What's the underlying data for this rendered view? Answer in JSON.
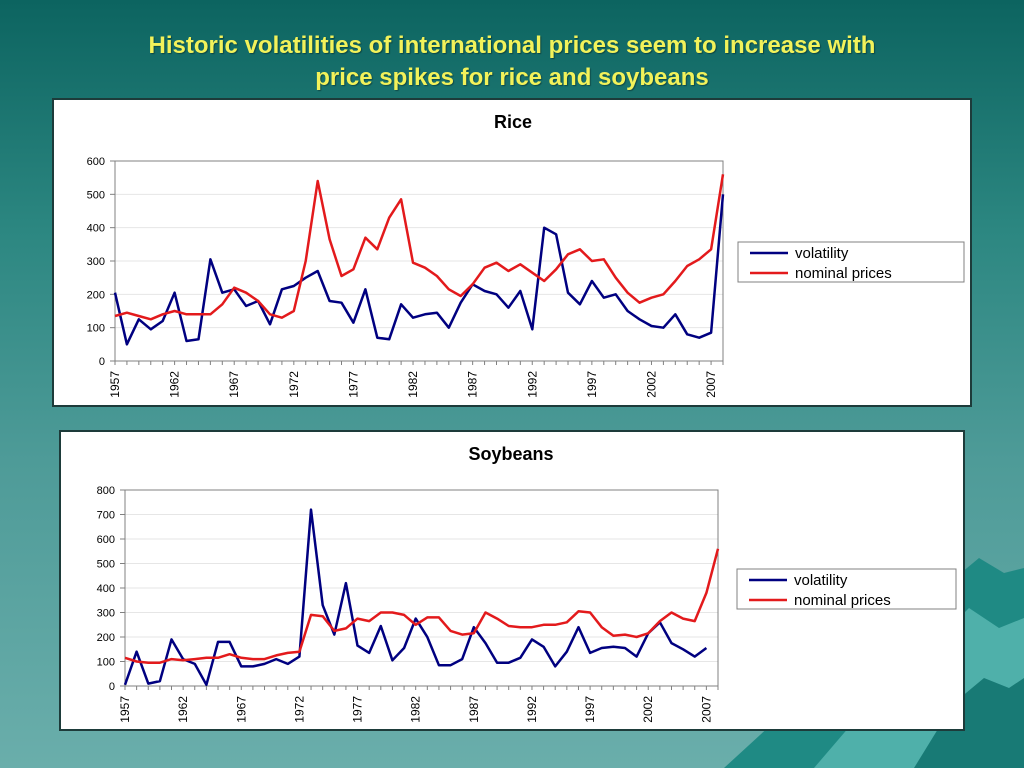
{
  "slide": {
    "title_line1": "Historic volatilities of international prices seem to increase with",
    "title_line2": "price spikes for rice and soybeans"
  },
  "colors": {
    "volatility": "#000080",
    "nominal_prices": "#e31a1c",
    "title": "#f2f25a"
  },
  "chart_data": [
    {
      "type": "line",
      "title": "Rice",
      "xlabel": "",
      "ylabel": "",
      "xlim": [
        1957,
        2008
      ],
      "ylim": [
        0,
        600
      ],
      "yticks": [
        0,
        100,
        200,
        300,
        400,
        500,
        600
      ],
      "xticks": [
        "1957",
        "1962",
        "1967",
        "1972",
        "1977",
        "1982",
        "1987",
        "1992",
        "1997",
        "2002",
        "2007"
      ],
      "grid": true,
      "legend": "right",
      "x": [
        1957,
        1958,
        1959,
        1960,
        1961,
        1962,
        1963,
        1964,
        1965,
        1966,
        1967,
        1968,
        1969,
        1970,
        1971,
        1972,
        1973,
        1974,
        1975,
        1976,
        1977,
        1978,
        1979,
        1980,
        1981,
        1982,
        1983,
        1984,
        1985,
        1986,
        1987,
        1988,
        1989,
        1990,
        1991,
        1992,
        1993,
        1994,
        1995,
        1996,
        1997,
        1998,
        1999,
        2000,
        2001,
        2002,
        2003,
        2004,
        2005,
        2006,
        2007,
        2008
      ],
      "series": [
        {
          "name": "volatility",
          "values": [
            205,
            50,
            125,
            95,
            120,
            205,
            60,
            65,
            305,
            205,
            215,
            165,
            180,
            110,
            215,
            225,
            250,
            270,
            180,
            175,
            115,
            215,
            70,
            65,
            170,
            130,
            140,
            145,
            100,
            175,
            230,
            210,
            200,
            160,
            210,
            95,
            400,
            380,
            205,
            170,
            240,
            190,
            200,
            150,
            125,
            105,
            100,
            140,
            80,
            70,
            85,
            500
          ]
        },
        {
          "name": "nominal prices",
          "values": [
            135,
            145,
            135,
            125,
            140,
            150,
            140,
            140,
            140,
            170,
            220,
            205,
            180,
            140,
            130,
            150,
            300,
            540,
            365,
            255,
            275,
            370,
            335,
            430,
            485,
            295,
            280,
            255,
            215,
            195,
            230,
            280,
            295,
            270,
            290,
            265,
            240,
            275,
            320,
            335,
            300,
            305,
            250,
            205,
            175,
            190,
            200,
            240,
            285,
            305,
            335,
            560
          ]
        }
      ]
    },
    {
      "type": "line",
      "title": "Soybeans",
      "xlabel": "",
      "ylabel": "",
      "xlim": [
        1957,
        2008
      ],
      "ylim": [
        0,
        800
      ],
      "yticks": [
        0,
        100,
        200,
        300,
        400,
        500,
        600,
        700,
        800
      ],
      "xticks": [
        "1957",
        "1962",
        "1967",
        "1972",
        "1977",
        "1982",
        "1987",
        "1992",
        "1997",
        "2002",
        "2007"
      ],
      "grid": true,
      "legend": "right",
      "x": [
        1957,
        1958,
        1959,
        1960,
        1961,
        1962,
        1963,
        1964,
        1965,
        1966,
        1967,
        1968,
        1969,
        1970,
        1971,
        1972,
        1973,
        1974,
        1975,
        1976,
        1977,
        1978,
        1979,
        1980,
        1981,
        1982,
        1983,
        1984,
        1985,
        1986,
        1987,
        1988,
        1989,
        1990,
        1991,
        1992,
        1993,
        1994,
        1995,
        1996,
        1997,
        1998,
        1999,
        2000,
        2001,
        2002,
        2003,
        2004,
        2005,
        2006,
        2007,
        2008
      ],
      "series": [
        {
          "name": "volatility",
          "values": [
            5,
            140,
            10,
            20,
            190,
            110,
            90,
            5,
            180,
            180,
            80,
            80,
            90,
            110,
            90,
            120,
            720,
            330,
            210,
            420,
            165,
            135,
            245,
            105,
            155,
            275,
            200,
            85,
            85,
            110,
            240,
            175,
            95,
            95,
            115,
            190,
            160,
            80,
            140,
            240,
            135,
            155,
            160,
            155,
            120,
            215,
            260,
            175,
            150,
            120,
            155,
            null
          ]
        },
        {
          "name": "nominal prices",
          "values": [
            115,
            100,
            95,
            95,
            110,
            105,
            110,
            115,
            115,
            130,
            115,
            110,
            110,
            125,
            135,
            140,
            290,
            285,
            225,
            235,
            275,
            265,
            300,
            300,
            290,
            250,
            280,
            280,
            225,
            210,
            215,
            300,
            275,
            245,
            240,
            240,
            250,
            250,
            260,
            305,
            300,
            240,
            205,
            210,
            200,
            215,
            265,
            300,
            275,
            265,
            380,
            560
          ]
        }
      ]
    }
  ]
}
